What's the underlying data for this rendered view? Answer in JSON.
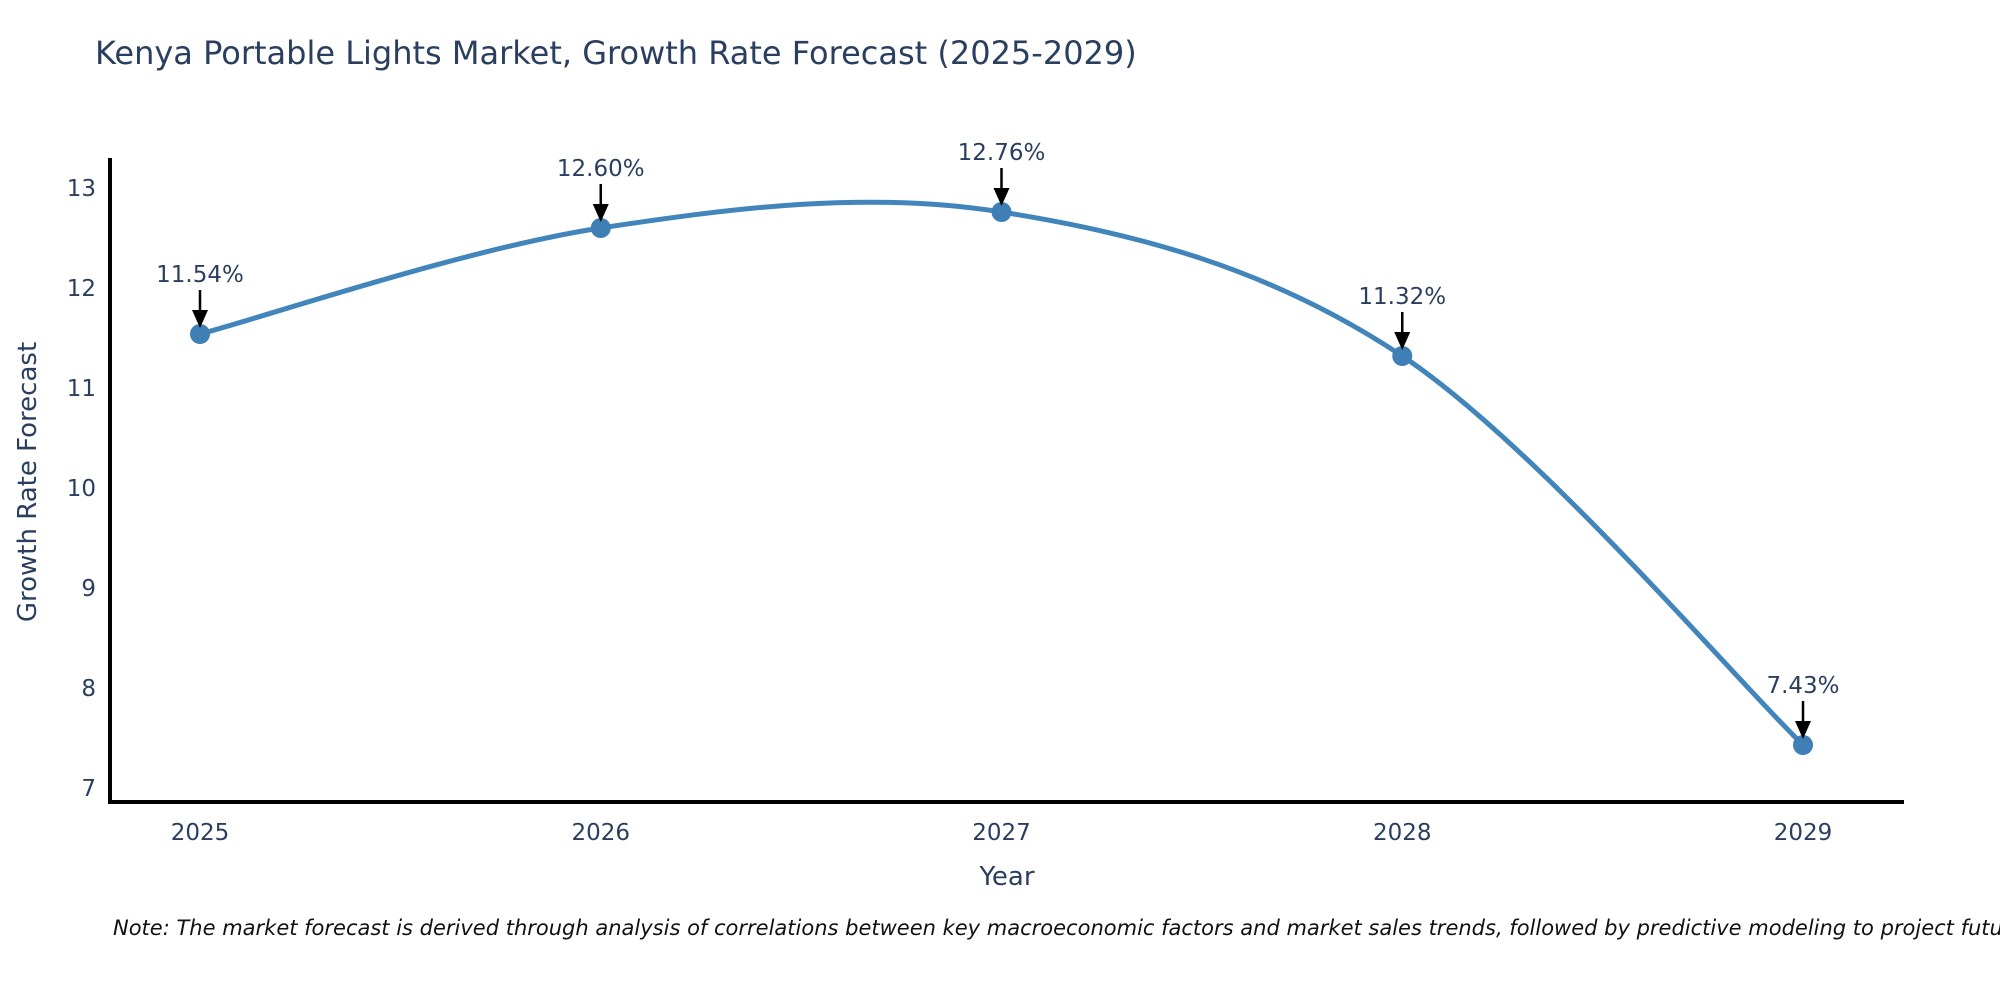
{
  "chart_data": {
    "type": "line",
    "title": "Kenya Portable Lights Market, Growth Rate Forecast (2025-2029)",
    "xlabel": "Year",
    "ylabel": "Growth Rate Forecast",
    "x": [
      2025,
      2026,
      2027,
      2028,
      2029
    ],
    "series": [
      {
        "name": "Growth Rate Forecast",
        "values": [
          11.54,
          12.6,
          12.76,
          11.32,
          7.43
        ]
      }
    ],
    "point_labels": [
      "11.54%",
      "12.60%",
      "12.76%",
      "11.32%",
      "7.43%"
    ],
    "yticks": [
      7,
      8,
      9,
      10,
      11,
      12,
      13
    ],
    "xticks": [
      "2025",
      "2026",
      "2027",
      "2028",
      "2029"
    ],
    "ylim": [
      6.86,
      13.28
    ],
    "line_shape": "spline",
    "grid": false,
    "legend_position": "none",
    "colors": {
      "line": "#4285ba",
      "marker": "#3f7fb5",
      "axis": "#000000",
      "tick_text": "#2a3f5f",
      "annotation_text": "#2a3f5f",
      "arrow": "#000000",
      "background": "#ffffff"
    }
  },
  "note": "Note: The market forecast is derived through analysis of correlations between key macroeconomic factors and market sales trends, followed by predictive modeling to project future sales"
}
